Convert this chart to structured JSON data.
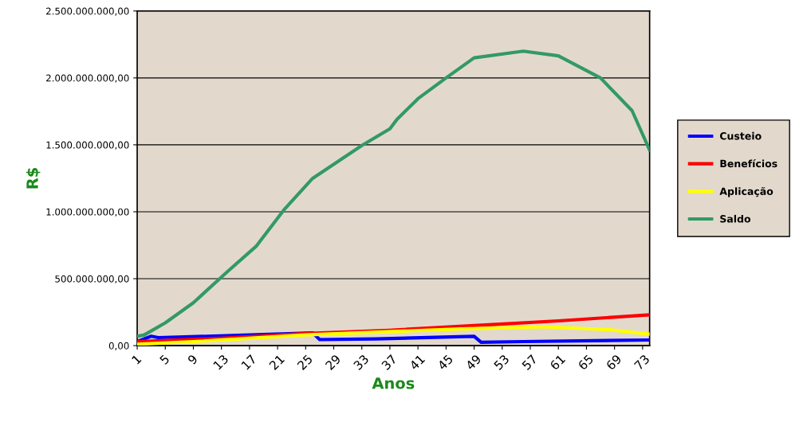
{
  "chart_data": {
    "type": "line",
    "xlabel": "Anos",
    "ylabel": "R$",
    "xlim": [
      1,
      74
    ],
    "xticks": [
      1,
      5,
      9,
      13,
      17,
      21,
      25,
      29,
      33,
      37,
      41,
      45,
      49,
      53,
      57,
      61,
      65,
      69,
      73
    ],
    "ylim": [
      0,
      2500000000
    ],
    "yticks": [
      {
        "value": 0,
        "label": "0,00"
      },
      {
        "value": 500000000,
        "label": "500.000.000,00"
      },
      {
        "value": 1000000000,
        "label": "1.000.000.000,00"
      },
      {
        "value": 1500000000,
        "label": "1.500.000.000,00"
      },
      {
        "value": 2000000000,
        "label": "2.000.000.000,00"
      },
      {
        "value": 2500000000,
        "label": "2.500.000.000,00"
      }
    ],
    "grid": "y",
    "legend": "right",
    "marker": "none",
    "line_style": "solid",
    "series": [
      {
        "name": "Custeio",
        "color": "#0000ff",
        "x": [
          1,
          3,
          4,
          11,
          26,
          27,
          35,
          49,
          50,
          56,
          74
        ],
        "values": [
          30000000,
          70000000,
          60000000,
          70000000,
          95000000,
          45000000,
          50000000,
          70000000,
          25000000,
          30000000,
          42000000
        ]
      },
      {
        "name": "Benefícios",
        "color": "#ff0000",
        "x": [
          1,
          13,
          25,
          37,
          49,
          61,
          74
        ],
        "values": [
          30000000,
          55000000,
          90000000,
          115000000,
          150000000,
          185000000,
          230000000
        ]
      },
      {
        "name": "Aplicação",
        "color": "#ffff00",
        "x": [
          1,
          9,
          25,
          47,
          59,
          68,
          74
        ],
        "values": [
          10000000,
          30000000,
          80000000,
          125000000,
          140000000,
          120000000,
          86000000
        ]
      },
      {
        "name": "Saldo",
        "color": "#339966",
        "x": [
          1,
          2,
          3,
          5,
          9,
          14,
          18,
          22,
          26,
          33,
          37,
          38,
          41,
          45,
          49,
          56,
          61,
          67,
          71.5,
          74
        ],
        "values": [
          70000000,
          80000000,
          110000000,
          170000000,
          320000000,
          560000000,
          745000000,
          1020000000,
          1250000000,
          1495000000,
          1620000000,
          1690000000,
          1845000000,
          2000000000,
          2150000000,
          2200000000,
          2165000000,
          2000000000,
          1755000000,
          1460000000
        ]
      }
    ]
  }
}
